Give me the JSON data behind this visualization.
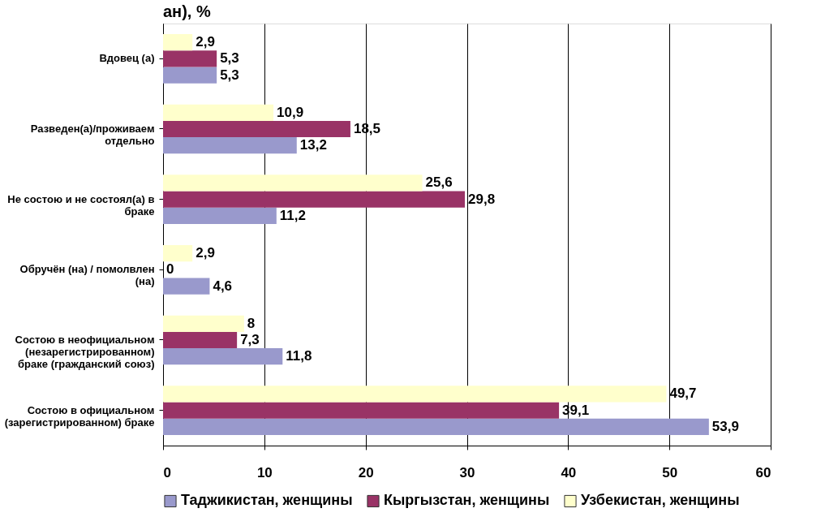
{
  "chart_data": {
    "type": "bar",
    "orientation": "horizontal",
    "title": "ан), %",
    "categories": [
      "Вдовец (а)",
      "Разведен(а)/проживаем\nотдельно",
      "Не состою и не состоял(а) в\nбраке",
      "Обручён (на) / помолвлен\n(на)",
      "Состою в неофициальном\n(незарегистрированном)\nбраке (гражданский союз)",
      "Состою в официальном\n(зарегистрированном) браке"
    ],
    "series": [
      {
        "name": "Таджикистан, женщины",
        "color": "#9999cc",
        "values": [
          5.3,
          13.2,
          11.2,
          4.6,
          11.8,
          53.9
        ],
        "value_labels": [
          "5,3",
          "13,2",
          "11,2",
          "4,6",
          "11,8",
          "53,9"
        ]
      },
      {
        "name": "Кыргызстан, женщины",
        "color": "#993366",
        "values": [
          5.3,
          18.5,
          29.8,
          0,
          7.3,
          39.1
        ],
        "value_labels": [
          "5,3",
          "18,5",
          "29,8",
          "0",
          "7,3",
          "39,1"
        ]
      },
      {
        "name": "Узбекистан, женщины",
        "color": "#ffffcc",
        "values": [
          2.9,
          10.9,
          25.6,
          2.9,
          8,
          49.7
        ],
        "value_labels": [
          "2,9",
          "10,9",
          "25,6",
          "2,9",
          "8",
          "49,7"
        ]
      }
    ],
    "xlim": [
      0,
      60
    ],
    "xticks": [
      0,
      10,
      20,
      30,
      40,
      50,
      60
    ],
    "grid": "x",
    "legend": "bottom"
  }
}
